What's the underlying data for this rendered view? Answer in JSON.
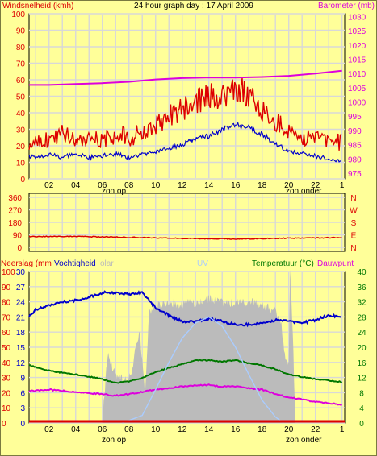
{
  "title": "24 hour graph day : 17 April 2009",
  "colors": {
    "background": "#ffff99",
    "wind": "#dd0000",
    "gust_avg": "#0000cc",
    "barometer": "#dd00dd",
    "direction": "#dd0000",
    "humidity": "#0000cc",
    "temperature": "#007700",
    "dewpoint": "#dd00dd",
    "solar": "#bbbbbb",
    "uv": "#aaccff",
    "rain": "#dd0000"
  },
  "x_ticks": [
    "02",
    "04",
    "06",
    "08",
    "10",
    "12",
    "14",
    "16",
    "18",
    "20",
    "22"
  ],
  "x_end_tick": "1",
  "sun_labels": {
    "sunrise": "zon op",
    "sunset": "zon onder"
  },
  "chart_data": [
    {
      "type": "line",
      "panel": "wind-barometer",
      "left_axis_label": "Windsnelheid (kmh)",
      "right_axis_label": "Barometer (mb)",
      "left_ticks": [
        100,
        90,
        80,
        70,
        60,
        50,
        40,
        30,
        20,
        10,
        0
      ],
      "right_ticks": [
        1030,
        1025,
        1020,
        1015,
        1010,
        1005,
        1000,
        995,
        990,
        985,
        980,
        975
      ],
      "ylim_left": [
        0,
        100
      ],
      "ylim_right": [
        973,
        1031
      ],
      "x_range_hours": [
        0.5,
        24.2
      ],
      "series": [
        {
          "key": "windgust",
          "axis": "left",
          "points": [
            [
              0.5,
              22
            ],
            [
              1,
              25
            ],
            [
              2,
              24
            ],
            [
              3,
              28
            ],
            [
              4,
              25
            ],
            [
              5,
              26
            ],
            [
              6,
              24
            ],
            [
              7,
              27
            ],
            [
              8,
              25
            ],
            [
              9,
              28
            ],
            [
              10,
              33
            ],
            [
              11,
              38
            ],
            [
              12,
              42
            ],
            [
              13,
              46
            ],
            [
              14,
              51
            ],
            [
              15,
              50
            ],
            [
              16,
              56
            ],
            [
              17,
              50
            ],
            [
              18,
              42
            ],
            [
              19,
              35
            ],
            [
              20,
              30
            ],
            [
              21,
              26
            ],
            [
              22,
              24
            ],
            [
              23,
              23
            ],
            [
              24,
              22
            ]
          ]
        },
        {
          "key": "windavg",
          "axis": "left",
          "points": [
            [
              0.5,
              14
            ],
            [
              1,
              13
            ],
            [
              2,
              15
            ],
            [
              3,
              13
            ],
            [
              4,
              15
            ],
            [
              5,
              13
            ],
            [
              6,
              14
            ],
            [
              7,
              15
            ],
            [
              8,
              13
            ],
            [
              9,
              15
            ],
            [
              10,
              16
            ],
            [
              11,
              18
            ],
            [
              12,
              21
            ],
            [
              13,
              24
            ],
            [
              14,
              26
            ],
            [
              15,
              30
            ],
            [
              16,
              33
            ],
            [
              17,
              31
            ],
            [
              18,
              27
            ],
            [
              19,
              21
            ],
            [
              20,
              17
            ],
            [
              21,
              15
            ],
            [
              22,
              14
            ],
            [
              23,
              12
            ],
            [
              24,
              11
            ]
          ]
        },
        {
          "key": "barometer",
          "axis": "right",
          "points": [
            [
              0.5,
              1006
            ],
            [
              2,
              1006
            ],
            [
              4,
              1006.3
            ],
            [
              6,
              1006.6
            ],
            [
              8,
              1007.1
            ],
            [
              10,
              1007.9
            ],
            [
              12,
              1008.4
            ],
            [
              14,
              1008.6
            ],
            [
              16,
              1008.6
            ],
            [
              18,
              1008.8
            ],
            [
              20,
              1009.2
            ],
            [
              22,
              1010
            ],
            [
              24,
              1011
            ]
          ]
        }
      ]
    },
    {
      "type": "line",
      "panel": "wind-direction",
      "left_ticks": [
        360,
        270,
        180,
        90,
        0
      ],
      "right_ticks": [
        "N",
        "W",
        "S",
        "E",
        "N"
      ],
      "ylim": [
        0,
        360
      ],
      "series": [
        {
          "key": "direction",
          "points": [
            [
              0.5,
              78
            ],
            [
              4,
              78
            ],
            [
              8,
              72
            ],
            [
              12,
              64
            ],
            [
              16,
              60
            ],
            [
              20,
              66
            ],
            [
              24,
              70
            ]
          ]
        }
      ]
    },
    {
      "type": "line",
      "panel": "rain-humidity-temperature",
      "left_axis_label": "Neerslag (mm",
      "humidity_label": "Vochtigheid",
      "solar_label": "olar",
      "uv_label": "UV",
      "right_axis_label": "Temperatuur (°C)",
      "dewpoint_label": "Dauwpunt",
      "left_ticks_outer": [
        100,
        90,
        80,
        70,
        60,
        50,
        40,
        30,
        20,
        10,
        0
      ],
      "left_ticks_inner": [
        30,
        27,
        24,
        21,
        18,
        15,
        12,
        9,
        6,
        3,
        0
      ],
      "right_ticks": [
        40,
        36,
        32,
        28,
        24,
        20,
        16,
        12,
        8,
        4,
        0
      ],
      "ylim_humidity": [
        0,
        100
      ],
      "ylim_temperature": [
        0,
        40
      ],
      "series": [
        {
          "key": "humidity",
          "points": [
            [
              0.5,
              70
            ],
            [
              1,
              75
            ],
            [
              2,
              78
            ],
            [
              3,
              80
            ],
            [
              4,
              81
            ],
            [
              5,
              83
            ],
            [
              6,
              86
            ],
            [
              7,
              86
            ],
            [
              8,
              85
            ],
            [
              9,
              86
            ],
            [
              10,
              76
            ],
            [
              11,
              71
            ],
            [
              12,
              67
            ],
            [
              13,
              67
            ],
            [
              14,
              69
            ],
            [
              15,
              67
            ],
            [
              16,
              65
            ],
            [
              17,
              65
            ],
            [
              18,
              66
            ],
            [
              19,
              68
            ],
            [
              20,
              67
            ],
            [
              21,
              66
            ],
            [
              22,
              68
            ],
            [
              23,
              71
            ],
            [
              24,
              70
            ]
          ]
        },
        {
          "key": "temperature",
          "points": [
            [
              0.5,
              15.2
            ],
            [
              2,
              13.8
            ],
            [
              4,
              12.8
            ],
            [
              6,
              11.6
            ],
            [
              7,
              10.6
            ],
            [
              8,
              11
            ],
            [
              9,
              11.8
            ],
            [
              10,
              13.4
            ],
            [
              11,
              14.6
            ],
            [
              12,
              15.5
            ],
            [
              13,
              16.5
            ],
            [
              14,
              16.6
            ],
            [
              15,
              16.2
            ],
            [
              16,
              16.6
            ],
            [
              17,
              15.8
            ],
            [
              18,
              15.2
            ],
            [
              19,
              14.2
            ],
            [
              20,
              12.8
            ],
            [
              22,
              11.6
            ],
            [
              24,
              10.8
            ]
          ]
        },
        {
          "key": "dewpoint",
          "points": [
            [
              0.5,
              8.4
            ],
            [
              2,
              8.8
            ],
            [
              4,
              8.2
            ],
            [
              6,
              7.6
            ],
            [
              7,
              7.2
            ],
            [
              8,
              7.6
            ],
            [
              9,
              8.2
            ],
            [
              10,
              8.8
            ],
            [
              11,
              9.2
            ],
            [
              12,
              9.6
            ],
            [
              13,
              10
            ],
            [
              14,
              10
            ],
            [
              15,
              9.6
            ],
            [
              16,
              9.6
            ],
            [
              17,
              9.2
            ],
            [
              18,
              8.8
            ],
            [
              19,
              7.6
            ],
            [
              20,
              6.8
            ],
            [
              22,
              5.6
            ],
            [
              24,
              4.8
            ]
          ]
        },
        {
          "key": "solar",
          "kind": "area",
          "points": [
            [
              6,
              2
            ],
            [
              6.4,
              45
            ],
            [
              6.8,
              35
            ],
            [
              7.3,
              30
            ],
            [
              7.8,
              28
            ],
            [
              8.2,
              32
            ],
            [
              8.5,
              50
            ],
            [
              8.8,
              62
            ],
            [
              9.2,
              18
            ],
            [
              9.5,
              72
            ],
            [
              10,
              78
            ],
            [
              11,
              80
            ],
            [
              12,
              78
            ],
            [
              12.8,
              81
            ],
            [
              13,
              78
            ],
            [
              14,
              82
            ],
            [
              15,
              80
            ],
            [
              16,
              79
            ],
            [
              17,
              80
            ],
            [
              18,
              78
            ],
            [
              19,
              74
            ],
            [
              19.4,
              68
            ],
            [
              19.7,
              45
            ],
            [
              20,
              38
            ],
            [
              20.1,
              100
            ],
            [
              20.3,
              60
            ],
            [
              20.5,
              0
            ]
          ]
        },
        {
          "key": "uv",
          "points": [
            [
              7.5,
              0
            ],
            [
              9,
              5
            ],
            [
              10,
              22
            ],
            [
              11,
              40
            ],
            [
              12,
              56
            ],
            [
              13,
              66
            ],
            [
              14,
              70
            ],
            [
              15,
              64
            ],
            [
              16,
              50
            ],
            [
              17,
              32
            ],
            [
              18,
              15
            ],
            [
              19,
              4
            ],
            [
              19.6,
              0
            ]
          ]
        },
        {
          "key": "rain",
          "points": [
            [
              0.5,
              0
            ],
            [
              24.2,
              0
            ]
          ]
        }
      ]
    }
  ]
}
